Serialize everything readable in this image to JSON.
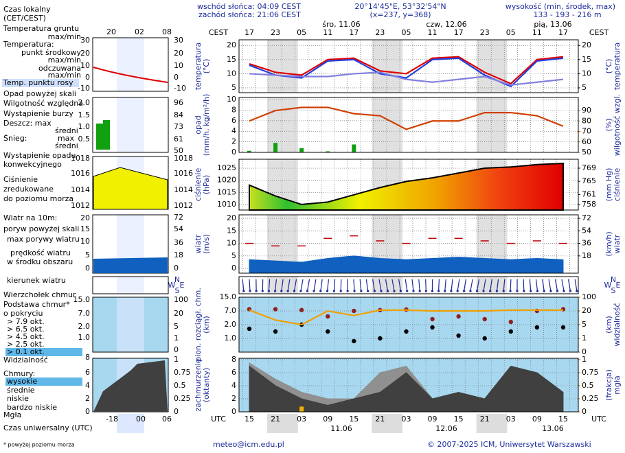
{
  "header": {
    "sunrise": "wschód słońca: 04:09 CEST",
    "sunset": "zachód słońca: 21:06 CEST",
    "coords": "20°14'45\"E, 53°32'54\"N",
    "grid": "(x=237, y=368)",
    "height_title": "wysokość (min, środek, max)",
    "height_values": "133 - 193 - 216 m"
  },
  "time_axis": {
    "local_label": "CEST",
    "local_hours": [
      "17",
      "23",
      "05",
      "11",
      "17",
      "23",
      "05",
      "11",
      "17",
      "23",
      "05",
      "11",
      "17"
    ],
    "days": [
      "śro, 11.06",
      "czw, 12.06",
      "pią, 13.06"
    ],
    "utc_label": "UTC",
    "utc_hours": [
      "15",
      "21",
      "03",
      "09",
      "15",
      "21",
      "03",
      "09",
      "15",
      "21",
      "03",
      "09",
      "15"
    ],
    "utc_days": [
      "11.06",
      "12.06",
      "13.06"
    ]
  },
  "compass": {
    "w": "W",
    "n": "N",
    "s": "S",
    "e": "E"
  },
  "chart_data": [
    {
      "type": "line",
      "ylabel": [
        "temperatura",
        "(°C)"
      ],
      "y2label": [
        "(°C)",
        "temperatura"
      ],
      "grid": true,
      "ylim": [
        3.3,
        22
      ],
      "yticks": [
        5,
        10,
        15,
        20
      ],
      "y2lim": [
        3.3,
        22
      ],
      "y2ticks": [
        5,
        10,
        15,
        20
      ],
      "series": [
        {
          "color": "#e00000",
          "values": [
            13.5,
            10.5,
            9.5,
            15,
            15.5,
            11,
            10,
            15.5,
            16,
            10.5,
            6.5,
            15,
            16
          ]
        },
        {
          "color": "#2040e0",
          "values": [
            13,
            9.5,
            8.5,
            14.5,
            15,
            10,
            8.5,
            15,
            15.5,
            9.5,
            5.5,
            14.5,
            15.5
          ]
        },
        {
          "color": "#8080e0",
          "values": [
            10,
            9.5,
            9,
            9,
            10,
            10.5,
            8,
            7,
            8,
            9,
            6,
            7,
            8
          ]
        }
      ]
    },
    {
      "type": "bar",
      "ylabel": [
        "opad",
        "(mm/h, kg/m²/h)"
      ],
      "y2label": [
        "(%)",
        "wilgotność wzgl."
      ],
      "grid": true,
      "ylim": [
        0,
        10.4
      ],
      "yticks": [
        0,
        2,
        4,
        6,
        8,
        10
      ],
      "y2lim": [
        50,
        102.5
      ],
      "y2ticks": [
        50,
        60,
        70,
        80,
        90
      ],
      "series": [
        {
          "color": "#10a010",
          "values": [
            0.3,
            1.8,
            0.8,
            0.2,
            1.5,
            0,
            0,
            0,
            0,
            0,
            0,
            0,
            0
          ]
        },
        {
          "color": "#d04000",
          "axis": "y2",
          "values": [
            80,
            90,
            93,
            93,
            87,
            85,
            72,
            80,
            80,
            88,
            88,
            85,
            75
          ]
        }
      ]
    },
    {
      "type": "area",
      "ylabel": [
        "ciśnienie",
        "(hPa)"
      ],
      "y2label": [
        "(mm Hg)",
        "ciśnienie"
      ],
      "grid": true,
      "ylim": [
        1007.7,
        1028.7
      ],
      "yticks": [
        1010,
        1015,
        1020,
        1025
      ],
      "y2lim": [
        756.3,
        771.7
      ],
      "y2ticks": [
        758,
        761,
        765,
        769
      ],
      "series": [
        {
          "color": "#000000",
          "values": [
            1018,
            1013.5,
            1010,
            1011,
            1014,
            1017,
            1019.5,
            1021,
            1023,
            1025,
            1025.5,
            1026.5,
            1027
          ]
        }
      ]
    },
    {
      "type": "area",
      "ylabel": [
        "wiatr",
        "(m/s)"
      ],
      "y2label": [
        "(km/h)",
        "wiatr"
      ],
      "grid": true,
      "ylim": [
        -1.9,
        21.4
      ],
      "yticks": [
        0,
        5,
        10,
        15,
        20
      ],
      "y2lim": [
        -6.84,
        77.04
      ],
      "y2ticks": [
        18,
        36,
        54,
        72
      ],
      "series": [
        {
          "color": "#1060c0",
          "values": [
            3.5,
            3,
            2.5,
            4,
            5,
            4,
            3.5,
            4,
            4.5,
            4,
            3.5,
            4,
            3.5
          ]
        },
        {
          "color": "#c00000",
          "style": "dash",
          "values": [
            10,
            9,
            9,
            12,
            13,
            11,
            10,
            12,
            12,
            11,
            10,
            11,
            10
          ]
        }
      ]
    },
    {
      "type": "scatter",
      "ylabel": [
        "pion. rozciągł. chm.",
        "(km)"
      ],
      "y2label": [
        "(km)",
        "widzialność"
      ],
      "grid": true,
      "y_scale": "piecewise",
      "ylim": [
        0,
        15
      ],
      "yticks": [
        {
          "value": 1,
          "label": "1.0"
        },
        {
          "value": 2,
          "label": "2.0"
        },
        {
          "value": 7,
          "label": "7.0"
        },
        {
          "value": 15,
          "label": "15.0"
        }
      ],
      "y2lim": [
        0,
        100
      ],
      "y2ticks": [
        0,
        1,
        5,
        20,
        100
      ],
      "series": [
        {
          "color": "#902020",
          "values": [
            8,
            8,
            7.5,
            5,
            7,
            7.5,
            7.8,
            4,
            5,
            4,
            3,
            7,
            8
          ]
        },
        {
          "color": "#000000",
          "values": [
            1.7,
            1.5,
            2,
            1.5,
            0.8,
            1,
            1.5,
            1.8,
            1.2,
            1,
            1.5,
            1.8,
            1.8
          ]
        },
        {
          "color": "#f0a000",
          "axis": "y2",
          "style": "line",
          "values": [
            25,
            10,
            5,
            20,
            15,
            25,
            25,
            20,
            20,
            20,
            25,
            25,
            25
          ]
        }
      ]
    },
    {
      "type": "area",
      "ylabel": [
        "zachmurzenie",
        "(oktanty)"
      ],
      "y2label": [
        "(frakcja)",
        "mgła"
      ],
      "grid": true,
      "ylim": [
        0,
        8.2
      ],
      "yticks": [
        0,
        2,
        4,
        6,
        8
      ],
      "y2lim": [
        0,
        1.025
      ],
      "y2ticks": [
        0,
        0.25,
        0.5,
        0.75,
        1
      ],
      "series": [
        {
          "color": "#909090",
          "values": [
            7.5,
            5,
            3,
            2,
            2,
            6,
            7,
            2,
            2,
            2,
            7,
            6,
            3
          ]
        },
        {
          "color": "#404040",
          "values": [
            7,
            4,
            2,
            1,
            2,
            3,
            6,
            2,
            3,
            2,
            7,
            6,
            3
          ]
        },
        {
          "color": "#f0b000",
          "axis": "y2",
          "style": "bar",
          "values": [
            0,
            0,
            0.1,
            0,
            0,
            0,
            0,
            0,
            0,
            0,
            0,
            0,
            0
          ]
        }
      ]
    }
  ],
  "legend_panel": {
    "top_hours": [
      "20",
      "02",
      "08"
    ],
    "bottom_hours": [
      "-18",
      "00",
      "06"
    ],
    "temp": [
      "30",
      "20",
      "10",
      "0",
      "-10"
    ],
    "precip": [
      "2.0",
      "1.5",
      "1.0",
      "0.5"
    ],
    "humidity": [
      "96",
      "84",
      "73",
      "61",
      "50"
    ],
    "pressure": [
      "1018",
      "1016",
      "1014",
      "1012"
    ],
    "wind_left": [
      "20",
      "15",
      "10",
      "5",
      "0"
    ],
    "wind_right": [
      "72",
      "54",
      "36",
      "18",
      "0"
    ],
    "cloud_left": [
      "15.0",
      "7.0",
      "2.0",
      "1.0"
    ],
    "cloud_right": [
      "100",
      "20",
      "5",
      "1",
      "0"
    ],
    "cover_left": [
      "8",
      "6",
      "4",
      "2",
      "0"
    ],
    "cover_right": [
      "1",
      "0.75",
      "0.5",
      "0.25",
      "0"
    ]
  },
  "legend": [
    "Czas lokalny",
    "(CET/CEST)",
    "Temperatura gruntu",
    "max/min",
    "Temperatura:",
    "punkt środkowy",
    "max/min",
    "odczuwana",
    "max/min",
    "Temp. punktu rosy",
    "Opad powyżej skali",
    "Wilgotność względna",
    "Wystąpienie burzy",
    "Deszcz: max",
    "średni",
    "Śnieg:",
    "max",
    "średni",
    "Wystąpienie opadu",
    "konwekcyjnego",
    "Ciśnienie",
    "zredukowane",
    "do poziomu morza",
    "Wiatr na 10m:",
    "poryw powyżej skali",
    "max porywy wiatru",
    "prędkość wiatru",
    "w środku obszaru",
    "kierunek wiatru",
    "Wierzchołek chmur",
    "Podstawa chmur*",
    "o pokryciu",
    "> 7.9 okt.",
    "> 6.5 okt.",
    "> 4.5 okt.",
    "> 2.5 okt.",
    "> 0.1 okt.",
    "Widzialność",
    "Chmury:",
    "wysokie",
    "średnie",
    "niskie",
    "bardzo niskie",
    "Mgła",
    "Czas uniwersalny (UTC)",
    "* powyżej poziomu morza"
  ],
  "footer": {
    "email": "meteo@icm.edu.pl",
    "copyright": "© 2007-2025 ICM, Uniwersytet Warszawski"
  }
}
